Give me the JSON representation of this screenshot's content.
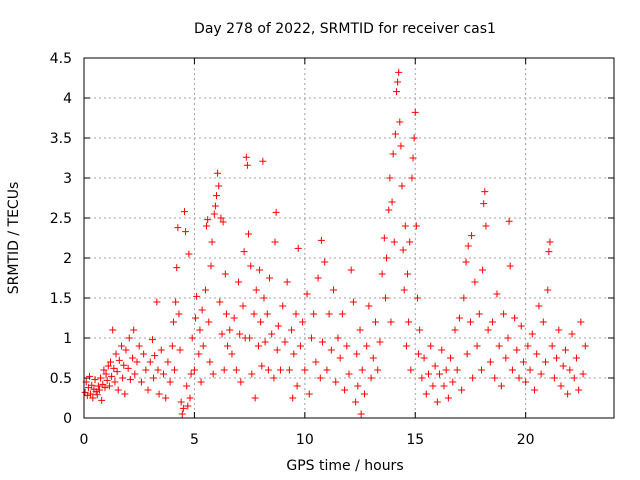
{
  "chart_data": {
    "type": "scatter",
    "title": "Day 278 of 2022, SRMTID for receiver cas1",
    "xlabel": "GPS time / hours",
    "ylabel": "SRMTID / TECUs",
    "xlim": [
      0,
      24
    ],
    "ylim": [
      0,
      4.5
    ],
    "x_ticks": [
      0,
      5,
      10,
      15,
      20
    ],
    "y_ticks": [
      0,
      0.5,
      1,
      1.5,
      2,
      2.5,
      3,
      3.5,
      4,
      4.5
    ],
    "x_tick_labels": [
      "0",
      "5",
      "10",
      "15",
      "20"
    ],
    "y_tick_labels": [
      "0",
      "0.5",
      "1",
      "1.5",
      "2",
      "2.5",
      "3",
      "3.5",
      "4",
      "4.5"
    ],
    "grid": true,
    "marker": "+",
    "marker_color": "#ff0000",
    "series": [
      {
        "name": "cas1",
        "points": [
          [
            0.05,
            0.32
          ],
          [
            0.1,
            0.45
          ],
          [
            0.15,
            0.28
          ],
          [
            0.2,
            0.38
          ],
          [
            0.25,
            0.52
          ],
          [
            0.3,
            0.3
          ],
          [
            0.35,
            0.41
          ],
          [
            0.4,
            0.25
          ],
          [
            0.45,
            0.36
          ],
          [
            0.5,
            0.48
          ],
          [
            0.55,
            0.33
          ],
          [
            0.6,
            0.29
          ],
          [
            0.65,
            0.4
          ],
          [
            0.7,
            0.35
          ],
          [
            0.75,
            0.5
          ],
          [
            0.8,
            0.22
          ],
          [
            0.85,
            0.42
          ],
          [
            0.9,
            0.6
          ],
          [
            0.95,
            0.38
          ],
          [
            1.0,
            0.55
          ],
          [
            1.05,
            0.47
          ],
          [
            1.1,
            0.65
          ],
          [
            1.15,
            0.4
          ],
          [
            1.2,
            0.7
          ],
          [
            1.25,
            0.52
          ],
          [
            1.3,
            1.1
          ],
          [
            1.35,
            0.62
          ],
          [
            1.4,
            0.45
          ],
          [
            1.45,
            0.8
          ],
          [
            1.5,
            0.58
          ],
          [
            1.55,
            0.35
          ],
          [
            1.6,
            0.72
          ],
          [
            1.7,
            0.9
          ],
          [
            1.75,
            0.5
          ],
          [
            1.8,
            0.66
          ],
          [
            1.85,
            0.3
          ],
          [
            1.9,
            0.85
          ],
          [
            2.0,
            0.62
          ],
          [
            2.05,
            1.0
          ],
          [
            2.1,
            0.48
          ],
          [
            2.2,
            0.75
          ],
          [
            2.25,
            1.1
          ],
          [
            2.3,
            0.55
          ],
          [
            2.4,
            0.7
          ],
          [
            2.5,
            0.9
          ],
          [
            2.6,
            0.45
          ],
          [
            2.7,
            0.8
          ],
          [
            2.8,
            0.6
          ],
          [
            2.9,
            0.35
          ],
          [
            3.0,
            0.7
          ],
          [
            3.1,
            0.98
          ],
          [
            3.15,
            0.5
          ],
          [
            3.2,
            0.78
          ],
          [
            3.3,
            1.45
          ],
          [
            3.35,
            0.6
          ],
          [
            3.4,
            0.3
          ],
          [
            3.5,
            0.85
          ],
          [
            3.6,
            0.55
          ],
          [
            3.7,
            0.25
          ],
          [
            3.8,
            0.7
          ],
          [
            3.9,
            0.45
          ],
          [
            4.0,
            0.9
          ],
          [
            4.05,
            1.2
          ],
          [
            4.1,
            0.6
          ],
          [
            4.15,
            1.45
          ],
          [
            4.2,
            1.88
          ],
          [
            4.25,
            2.38
          ],
          [
            4.3,
            1.3
          ],
          [
            4.35,
            0.85
          ],
          [
            4.4,
            0.2
          ],
          [
            4.45,
            0.05
          ],
          [
            4.5,
            0.12
          ],
          [
            4.55,
            2.58
          ],
          [
            4.6,
            2.33
          ],
          [
            4.65,
            0.4
          ],
          [
            4.7,
            0.15
          ],
          [
            4.75,
            2.05
          ],
          [
            4.8,
            0.25
          ],
          [
            4.85,
            0.55
          ],
          [
            4.9,
            1.0
          ],
          [
            5.0,
            0.6
          ],
          [
            5.05,
            1.25
          ],
          [
            5.1,
            1.52
          ],
          [
            5.2,
            0.8
          ],
          [
            5.25,
            1.1
          ],
          [
            5.3,
            0.45
          ],
          [
            5.35,
            1.35
          ],
          [
            5.4,
            0.9
          ],
          [
            5.5,
            1.6
          ],
          [
            5.55,
            2.4
          ],
          [
            5.6,
            2.48
          ],
          [
            5.65,
            1.2
          ],
          [
            5.7,
            0.7
          ],
          [
            5.75,
            1.9
          ],
          [
            5.8,
            2.2
          ],
          [
            5.85,
            0.55
          ],
          [
            5.9,
            2.55
          ],
          [
            5.95,
            2.65
          ],
          [
            6.0,
            2.78
          ],
          [
            6.05,
            3.06
          ],
          [
            6.1,
            2.9
          ],
          [
            6.15,
            1.45
          ],
          [
            6.2,
            2.5
          ],
          [
            6.25,
            1.05
          ],
          [
            6.3,
            2.45
          ],
          [
            6.35,
            0.6
          ],
          [
            6.4,
            1.8
          ],
          [
            6.45,
            1.3
          ],
          [
            6.5,
            0.9
          ],
          [
            6.6,
            1.1
          ],
          [
            6.7,
            0.8
          ],
          [
            6.8,
            1.25
          ],
          [
            6.9,
            0.6
          ],
          [
            7.0,
            1.7
          ],
          [
            7.05,
            1.05
          ],
          [
            7.1,
            0.45
          ],
          [
            7.2,
            1.4
          ],
          [
            7.25,
            2.08
          ],
          [
            7.3,
            1.0
          ],
          [
            7.35,
            3.26
          ],
          [
            7.4,
            3.16
          ],
          [
            7.45,
            2.3
          ],
          [
            7.5,
            1.0
          ],
          [
            7.55,
            1.9
          ],
          [
            7.6,
            0.55
          ],
          [
            7.7,
            1.3
          ],
          [
            7.75,
            0.25
          ],
          [
            7.8,
            1.6
          ],
          [
            7.9,
            0.9
          ],
          [
            7.95,
            1.85
          ],
          [
            8.0,
            1.2
          ],
          [
            8.05,
            0.65
          ],
          [
            8.1,
            3.21
          ],
          [
            8.15,
            1.5
          ],
          [
            8.2,
            0.95
          ],
          [
            8.3,
            1.3
          ],
          [
            8.35,
            0.6
          ],
          [
            8.4,
            1.75
          ],
          [
            8.5,
            1.05
          ],
          [
            8.6,
            0.5
          ],
          [
            8.65,
            2.2
          ],
          [
            8.7,
            2.57
          ],
          [
            8.75,
            0.85
          ],
          [
            8.8,
            1.15
          ],
          [
            8.9,
            0.6
          ],
          [
            9.0,
            1.4
          ],
          [
            9.1,
            0.95
          ],
          [
            9.2,
            1.7
          ],
          [
            9.3,
            0.6
          ],
          [
            9.4,
            1.1
          ],
          [
            9.45,
            0.25
          ],
          [
            9.5,
            0.8
          ],
          [
            9.6,
            1.3
          ],
          [
            9.65,
            0.4
          ],
          [
            9.7,
            2.12
          ],
          [
            9.8,
            0.9
          ],
          [
            9.9,
            1.2
          ],
          [
            10.0,
            0.6
          ],
          [
            10.1,
            1.55
          ],
          [
            10.2,
            0.3
          ],
          [
            10.3,
            1.0
          ],
          [
            10.4,
            1.3
          ],
          [
            10.5,
            0.7
          ],
          [
            10.6,
            1.75
          ],
          [
            10.7,
            0.5
          ],
          [
            10.75,
            2.22
          ],
          [
            10.8,
            0.95
          ],
          [
            10.9,
            1.95
          ],
          [
            11.0,
            0.6
          ],
          [
            11.1,
            1.3
          ],
          [
            11.2,
            0.85
          ],
          [
            11.3,
            1.6
          ],
          [
            11.4,
            0.45
          ],
          [
            11.5,
            1.0
          ],
          [
            11.6,
            0.75
          ],
          [
            11.7,
            1.3
          ],
          [
            11.8,
            0.35
          ],
          [
            11.9,
            0.9
          ],
          [
            12.0,
            0.55
          ],
          [
            12.1,
            1.85
          ],
          [
            12.2,
            1.45
          ],
          [
            12.3,
            0.2
          ],
          [
            12.35,
            0.8
          ],
          [
            12.4,
            0.4
          ],
          [
            12.5,
            1.1
          ],
          [
            12.55,
            0.05
          ],
          [
            12.6,
            0.6
          ],
          [
            12.7,
            0.3
          ],
          [
            12.8,
            0.9
          ],
          [
            12.9,
            1.4
          ],
          [
            13.0,
            0.5
          ],
          [
            13.1,
            0.75
          ],
          [
            13.2,
            1.2
          ],
          [
            13.3,
            0.6
          ],
          [
            13.4,
            0.95
          ],
          [
            13.5,
            1.8
          ],
          [
            13.6,
            2.25
          ],
          [
            13.65,
            1.5
          ],
          [
            13.7,
            2.0
          ],
          [
            13.8,
            2.6
          ],
          [
            13.85,
            3.0
          ],
          [
            13.9,
            1.2
          ],
          [
            13.95,
            2.7
          ],
          [
            14.0,
            3.3
          ],
          [
            14.05,
            2.2
          ],
          [
            14.1,
            3.55
          ],
          [
            14.15,
            4.08
          ],
          [
            14.2,
            4.2
          ],
          [
            14.25,
            4.32
          ],
          [
            14.3,
            3.7
          ],
          [
            14.35,
            3.4
          ],
          [
            14.4,
            2.9
          ],
          [
            14.45,
            2.1
          ],
          [
            14.5,
            1.6
          ],
          [
            14.55,
            2.4
          ],
          [
            14.6,
            0.9
          ],
          [
            14.65,
            1.8
          ],
          [
            14.7,
            1.2
          ],
          [
            14.75,
            2.2
          ],
          [
            14.8,
            0.6
          ],
          [
            14.85,
            3.0
          ],
          [
            14.9,
            3.25
          ],
          [
            14.95,
            3.5
          ],
          [
            15.0,
            3.82
          ],
          [
            15.05,
            2.4
          ],
          [
            15.1,
            1.5
          ],
          [
            15.15,
            0.8
          ],
          [
            15.2,
            1.1
          ],
          [
            15.3,
            0.5
          ],
          [
            15.4,
            0.75
          ],
          [
            15.5,
            0.3
          ],
          [
            15.6,
            0.55
          ],
          [
            15.7,
            0.9
          ],
          [
            15.8,
            0.4
          ],
          [
            15.9,
            0.65
          ],
          [
            16.0,
            0.2
          ],
          [
            16.1,
            0.55
          ],
          [
            16.2,
            0.85
          ],
          [
            16.3,
            0.4
          ],
          [
            16.4,
            0.6
          ],
          [
            16.5,
            0.25
          ],
          [
            16.6,
            0.75
          ],
          [
            16.7,
            0.45
          ],
          [
            16.8,
            1.1
          ],
          [
            16.9,
            0.6
          ],
          [
            17.0,
            1.25
          ],
          [
            17.1,
            0.35
          ],
          [
            17.2,
            1.5
          ],
          [
            17.3,
            1.95
          ],
          [
            17.35,
            0.8
          ],
          [
            17.4,
            2.15
          ],
          [
            17.5,
            1.2
          ],
          [
            17.55,
            2.28
          ],
          [
            17.6,
            0.5
          ],
          [
            17.7,
            1.7
          ],
          [
            17.8,
            0.9
          ],
          [
            17.9,
            1.3
          ],
          [
            18.0,
            0.6
          ],
          [
            18.05,
            1.85
          ],
          [
            18.1,
            2.68
          ],
          [
            18.15,
            2.83
          ],
          [
            18.2,
            2.4
          ],
          [
            18.3,
            1.1
          ],
          [
            18.4,
            0.7
          ],
          [
            18.5,
            1.2
          ],
          [
            18.6,
            0.5
          ],
          [
            18.7,
            1.55
          ],
          [
            18.8,
            0.9
          ],
          [
            18.9,
            0.4
          ],
          [
            19.0,
            1.3
          ],
          [
            19.1,
            0.75
          ],
          [
            19.2,
            1.0
          ],
          [
            19.25,
            2.46
          ],
          [
            19.3,
            1.9
          ],
          [
            19.4,
            0.6
          ],
          [
            19.5,
            1.25
          ],
          [
            19.6,
            0.85
          ],
          [
            19.7,
            0.5
          ],
          [
            19.8,
            1.15
          ],
          [
            19.9,
            0.7
          ],
          [
            20.0,
            0.45
          ],
          [
            20.1,
            0.9
          ],
          [
            20.2,
            0.6
          ],
          [
            20.3,
            1.05
          ],
          [
            20.4,
            0.35
          ],
          [
            20.5,
            0.8
          ],
          [
            20.6,
            1.4
          ],
          [
            20.7,
            0.55
          ],
          [
            20.8,
            1.2
          ],
          [
            20.9,
            0.7
          ],
          [
            21.0,
            1.6
          ],
          [
            21.05,
            2.08
          ],
          [
            21.1,
            2.2
          ],
          [
            21.2,
            0.9
          ],
          [
            21.3,
            0.5
          ],
          [
            21.4,
            0.75
          ],
          [
            21.5,
            1.1
          ],
          [
            21.6,
            0.4
          ],
          [
            21.7,
            0.65
          ],
          [
            21.8,
            0.85
          ],
          [
            21.9,
            0.3
          ],
          [
            22.0,
            0.6
          ],
          [
            22.1,
            1.05
          ],
          [
            22.2,
            0.5
          ],
          [
            22.3,
            0.75
          ],
          [
            22.4,
            0.35
          ],
          [
            22.5,
            1.2
          ],
          [
            22.6,
            0.55
          ],
          [
            22.7,
            0.9
          ]
        ]
      }
    ]
  }
}
